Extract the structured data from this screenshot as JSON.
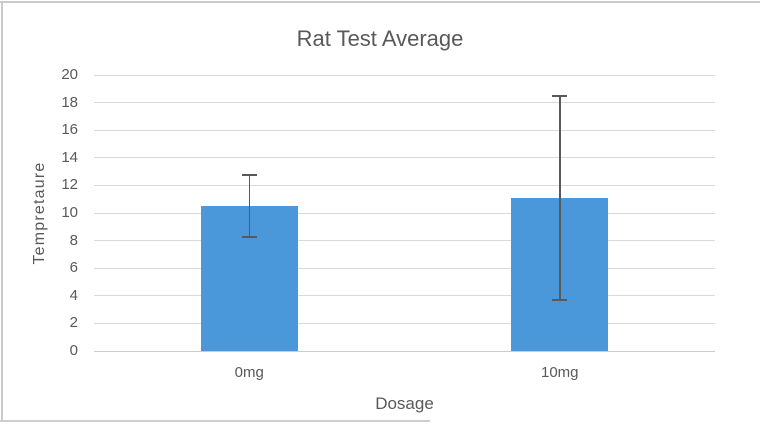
{
  "window": {
    "background": "#ffffff",
    "frame_border_color": "#cacaca"
  },
  "chart_data": {
    "type": "bar",
    "title": "Rat Test Average",
    "xlabel": "Dosage",
    "ylabel": "Tempretaure",
    "categories": [
      "0mg",
      "10mg"
    ],
    "values": [
      10.5,
      11.1
    ],
    "error_bars": {
      "type": "symmetric",
      "values": [
        2.25,
        7.4
      ]
    },
    "ylim": [
      0,
      20
    ],
    "ytick_step": 2,
    "ytick_labels": [
      "0",
      "2",
      "4",
      "6",
      "8",
      "10",
      "12",
      "14",
      "16",
      "18",
      "20"
    ],
    "grid": "horizontal",
    "legend": "none",
    "bar_color": "#4a98d9",
    "error_bar_color": "#595959",
    "gridline_color": "#d9d9d9",
    "axis_line_color": "#cbcbcb",
    "text_color": "#595959"
  }
}
